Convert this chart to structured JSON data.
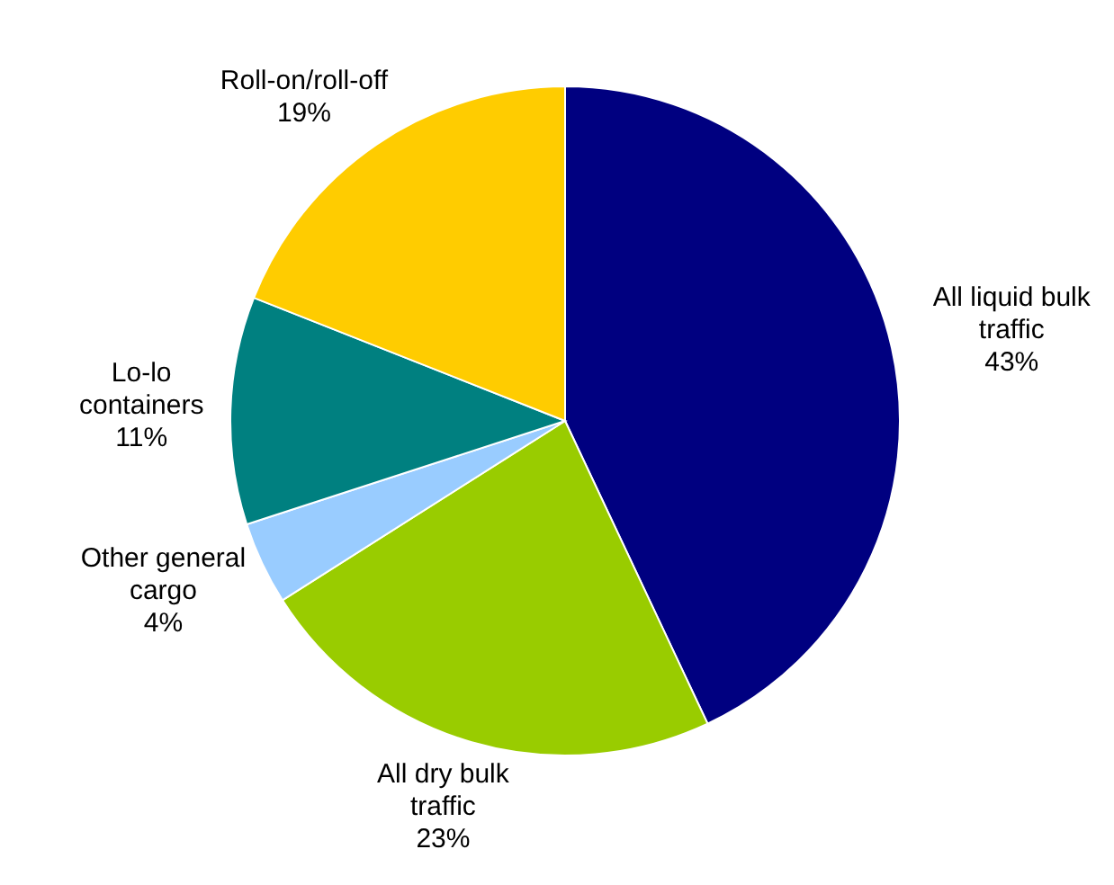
{
  "chart_data": {
    "type": "pie",
    "categories": [
      "All liquid bulk traffic",
      "All dry bulk traffic",
      "Other general cargo",
      "Lo-lo containers",
      "Roll-on/roll-off"
    ],
    "values": [
      43,
      23,
      4,
      11,
      19
    ],
    "colors": [
      "#000080",
      "#99cc00",
      "#99ccff",
      "#008080",
      "#ffcc00"
    ],
    "value_labels": [
      "43%",
      "23%",
      "4%",
      "11%",
      "19%"
    ]
  }
}
